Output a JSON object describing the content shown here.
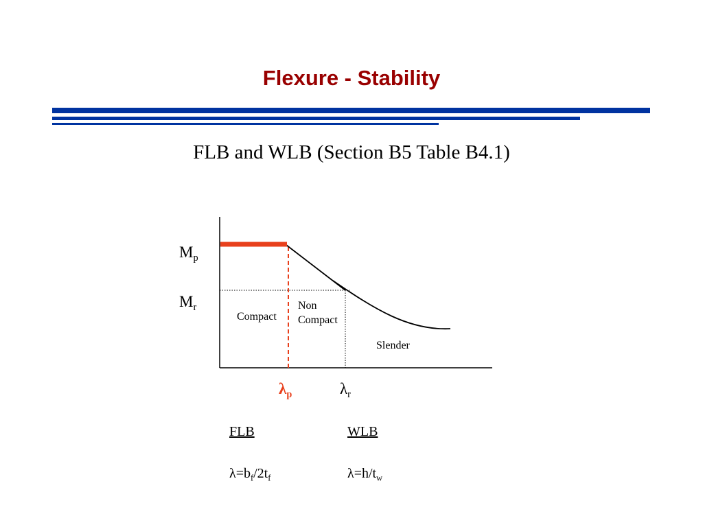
{
  "slide": {
    "title": "Flexure - Stability",
    "subtitle": "FLB and WLB (Section B5 Table B4.1)"
  },
  "diagram": {
    "y_labels": {
      "mp": {
        "base": "M",
        "sub": "p"
      },
      "mr": {
        "base": "M",
        "sub": "r"
      }
    },
    "x_labels": {
      "lambda_p": {
        "base": "λ",
        "sub": "p"
      },
      "lambda_r": {
        "base": "λ",
        "sub": "r"
      }
    },
    "regions": {
      "compact": "Compact",
      "noncompact_line1": "Non",
      "noncompact_line2": "Compact",
      "slender": "Slender"
    },
    "colors": {
      "plateau": "#e8401c",
      "axis": "#000000",
      "rule": "#0033a0",
      "title": "#990000"
    }
  },
  "definitions": {
    "flb": {
      "heading": "FLB",
      "formula_start": "λ=b",
      "formula_sub1": "f",
      "formula_mid": "/2t",
      "formula_sub2": "f"
    },
    "wlb": {
      "heading": "WLB",
      "formula_start": "λ=h/t",
      "formula_sub": "w"
    }
  }
}
